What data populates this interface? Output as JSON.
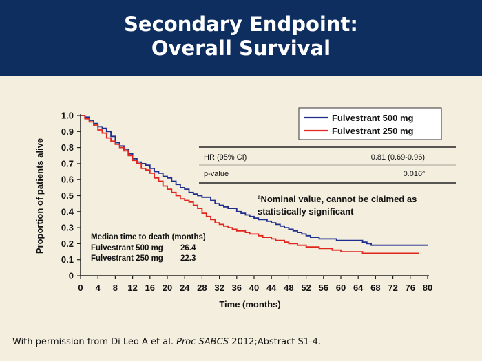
{
  "slide": {
    "title_line1": "Secondary Endpoint:",
    "title_line2": "Overall Survival",
    "credit_prefix": "With permission from Di Leo A et al. ",
    "credit_journal": "Proc SABCS",
    "credit_suffix": " 2012;Abstract S1-4."
  },
  "colors": {
    "header_bg": "#0d2e5e",
    "slide_bg": "#f4eedf",
    "series_500": "#1f2e8c",
    "series_250": "#e0261f"
  },
  "chart_data": {
    "type": "line",
    "step": true,
    "xlabel": "Time (months)",
    "ylabel": "Proportion of patients alive",
    "xlim": [
      0,
      80
    ],
    "ylim": [
      0,
      1.0
    ],
    "xticks": [
      "0",
      "4",
      "8",
      "12",
      "16",
      "20",
      "24",
      "28",
      "32",
      "36",
      "40",
      "44",
      "48",
      "52",
      "56",
      "60",
      "64",
      "68",
      "72",
      "76",
      "80"
    ],
    "yticks": [
      "0",
      "0.1",
      "0.2",
      "0.3",
      "0.4",
      "0.5",
      "0.6",
      "0.7",
      "0.8",
      "0.9",
      "1.0"
    ],
    "legend": {
      "placement": "top-right",
      "entries": [
        "Fulvestrant 500 mg",
        "Fulvestrant 250 mg"
      ]
    },
    "series": [
      {
        "name": "Fulvestrant 500 mg",
        "color": "#1f2e8c",
        "x": [
          0,
          1,
          2,
          3,
          4,
          5,
          6,
          7,
          8,
          9,
          10,
          11,
          12,
          13,
          14,
          15,
          16,
          17,
          18,
          19,
          20,
          21,
          22,
          23,
          24,
          25,
          26,
          27,
          28,
          29,
          30,
          31,
          32,
          33,
          34,
          35,
          36,
          37,
          38,
          39,
          40,
          41,
          42,
          43,
          44,
          45,
          46,
          47,
          48,
          49,
          50,
          51,
          52,
          53,
          54,
          55,
          56,
          57,
          58,
          59,
          60,
          61,
          62,
          63,
          64,
          65,
          66,
          67,
          68,
          70,
          72,
          74,
          76,
          78,
          80
        ],
        "y": [
          1.0,
          0.99,
          0.97,
          0.95,
          0.93,
          0.92,
          0.9,
          0.87,
          0.83,
          0.81,
          0.79,
          0.76,
          0.73,
          0.71,
          0.7,
          0.69,
          0.67,
          0.65,
          0.64,
          0.62,
          0.61,
          0.59,
          0.57,
          0.55,
          0.54,
          0.52,
          0.51,
          0.5,
          0.49,
          0.49,
          0.47,
          0.45,
          0.44,
          0.43,
          0.42,
          0.42,
          0.4,
          0.39,
          0.38,
          0.37,
          0.36,
          0.35,
          0.35,
          0.34,
          0.33,
          0.32,
          0.31,
          0.3,
          0.29,
          0.28,
          0.27,
          0.26,
          0.25,
          0.24,
          0.24,
          0.23,
          0.23,
          0.23,
          0.23,
          0.22,
          0.22,
          0.22,
          0.22,
          0.22,
          0.22,
          0.21,
          0.2,
          0.19,
          0.19,
          0.19,
          0.19,
          0.19,
          0.19,
          0.19,
          0.19
        ]
      },
      {
        "name": "Fulvestrant 250 mg",
        "color": "#e0261f",
        "x": [
          0,
          1,
          2,
          3,
          4,
          5,
          6,
          7,
          8,
          9,
          10,
          11,
          12,
          13,
          14,
          15,
          16,
          17,
          18,
          19,
          20,
          21,
          22,
          23,
          24,
          25,
          26,
          27,
          28,
          29,
          30,
          31,
          32,
          33,
          34,
          35,
          36,
          37,
          38,
          39,
          40,
          41,
          42,
          43,
          44,
          45,
          46,
          47,
          48,
          49,
          50,
          51,
          52,
          53,
          54,
          55,
          56,
          57,
          58,
          59,
          60,
          61,
          62,
          63,
          64,
          65,
          66,
          67,
          68,
          70,
          72,
          74,
          76,
          78
        ],
        "y": [
          1.0,
          0.98,
          0.96,
          0.94,
          0.91,
          0.89,
          0.86,
          0.84,
          0.82,
          0.8,
          0.78,
          0.75,
          0.72,
          0.7,
          0.67,
          0.66,
          0.64,
          0.61,
          0.59,
          0.56,
          0.54,
          0.52,
          0.5,
          0.48,
          0.47,
          0.46,
          0.44,
          0.42,
          0.39,
          0.37,
          0.35,
          0.33,
          0.32,
          0.31,
          0.3,
          0.29,
          0.28,
          0.28,
          0.27,
          0.26,
          0.26,
          0.25,
          0.24,
          0.24,
          0.23,
          0.22,
          0.22,
          0.21,
          0.2,
          0.2,
          0.19,
          0.19,
          0.18,
          0.18,
          0.18,
          0.17,
          0.17,
          0.17,
          0.16,
          0.16,
          0.15,
          0.15,
          0.15,
          0.15,
          0.15,
          0.14,
          0.14,
          0.14,
          0.14,
          0.14,
          0.14,
          0.14,
          0.14,
          0.14
        ]
      }
    ],
    "stats_table": {
      "rows": [
        {
          "label": "HR (95% CI)",
          "value": "0.81 (0.69-0.96)"
        },
        {
          "label": "p-value",
          "value": "0.016",
          "value_sup": "a"
        }
      ]
    },
    "footnote": {
      "sup": "a",
      "line1": "Nominal value, cannot be claimed as",
      "line2": "statistically significant"
    },
    "median_box": {
      "heading": "Median time to death (months)",
      "rows": [
        {
          "label": "Fulvestrant 500 mg",
          "value": "26.4"
        },
        {
          "label": "Fulvestrant 250 mg",
          "value": "22.3"
        }
      ]
    }
  }
}
